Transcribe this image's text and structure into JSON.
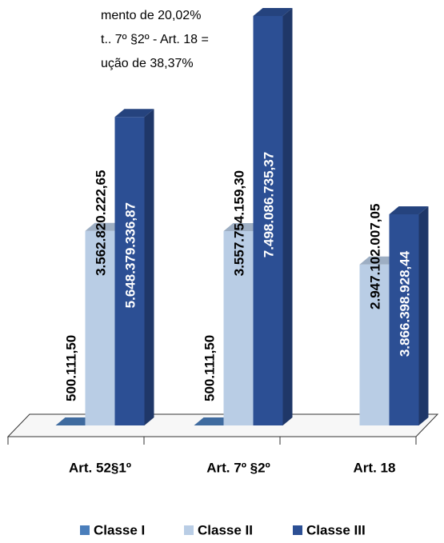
{
  "chart_data": {
    "type": "bar3d",
    "annotation": [
      "mento de 20,02%",
      "t.. 7º §2º - Art. 18 =",
      "ução de 38,37%"
    ],
    "categories": [
      "Art. 52§1º",
      "Art. 7º §2º",
      "Art. 18"
    ],
    "series": [
      {
        "name": "Classe I",
        "color": "#4a7ebb",
        "values": [
          500111.5,
          500111.5,
          null
        ],
        "value_labels": [
          "500.111,50",
          "500.111,50",
          null
        ]
      },
      {
        "name": "Classe II",
        "color": "#b9cde5",
        "values": [
          3562820222.65,
          3557754159.3,
          2947102007.05
        ],
        "value_labels": [
          "3.562.820.222,65",
          "3.557.754.159,30",
          "2.947.102.007,05"
        ]
      },
      {
        "name": "Classe III",
        "color": "#2c4f94",
        "values": [
          5648379336.87,
          7498086735.37,
          3866398928.44
        ],
        "value_labels": [
          "5.648.379.336,87",
          "7.498.086.735,37",
          "3.866.398.928,44"
        ]
      }
    ]
  }
}
